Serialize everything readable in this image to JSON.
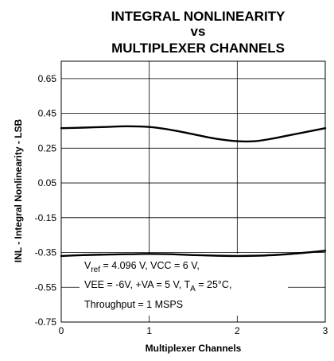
{
  "chart_data": {
    "type": "line",
    "title_lines": [
      "INTEGRAL NONLINEARITY",
      "vs",
      "MULTIPLEXER CHANNELS"
    ],
    "xlabel": "Multiplexer Channels",
    "ylabel": "INL - Integral Nonlinearity - LSB",
    "xlim": [
      0,
      3
    ],
    "ylim": [
      -0.75,
      0.75
    ],
    "x_ticks": [
      0,
      1,
      2,
      3
    ],
    "x_tick_labels": [
      "0",
      "1",
      "2",
      "3"
    ],
    "y_ticks": [
      -0.75,
      -0.55,
      -0.35,
      -0.15,
      0.05,
      0.25,
      0.45,
      0.65
    ],
    "y_tick_labels": [
      "-0.75",
      "-0.55",
      "-0.35",
      "-0.15",
      "0.05",
      "0.25",
      "0.45",
      "0.65"
    ],
    "grid": true,
    "line_color": "#000000",
    "series": [
      {
        "x": [
          0,
          0.25,
          0.5,
          0.75,
          1.0,
          1.25,
          1.5,
          1.75,
          2.0,
          2.2,
          2.4,
          2.6,
          2.8,
          3.0
        ],
        "y": [
          0.365,
          0.368,
          0.372,
          0.376,
          0.372,
          0.355,
          0.33,
          0.305,
          0.29,
          0.29,
          0.305,
          0.325,
          0.345,
          0.365
        ]
      },
      {
        "x": [
          0,
          0.25,
          0.5,
          0.75,
          1.0,
          1.25,
          1.5,
          1.75,
          2.0,
          2.25,
          2.5,
          2.75,
          3.0
        ],
        "y": [
          -0.37,
          -0.365,
          -0.362,
          -0.36,
          -0.358,
          -0.36,
          -0.365,
          -0.368,
          -0.37,
          -0.368,
          -0.362,
          -0.352,
          -0.34
        ]
      }
    ],
    "annotation": {
      "line1_prefix": "V",
      "line1_sub": "ref",
      "line1_rest": " = 4.096 V, VCC = 6 V,",
      "line2_main": "VEE = -6V, +VA = 5 V, T",
      "line2_sub": "A",
      "line2_rest": " = 25°C,",
      "line3": "Throughput  = 1 MSPS"
    }
  }
}
